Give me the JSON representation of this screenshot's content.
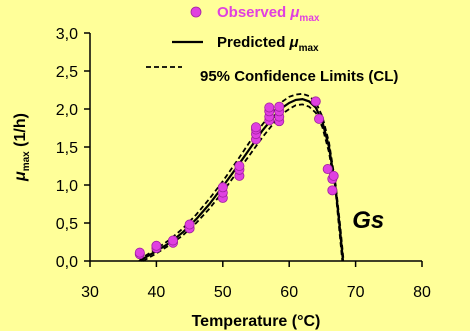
{
  "chart_data": {
    "type": "scatter",
    "xlabel": "Temperature (°C)",
    "ylabel": {
      "main": "μ",
      "sub": "max",
      "tail": " (1/h)"
    },
    "xlim": [
      30,
      80
    ],
    "ylim": [
      0.0,
      3.0
    ],
    "x_ticks": [
      30,
      40,
      50,
      60,
      70,
      80
    ],
    "x_tick_labels": [
      "30",
      "40",
      "50",
      "60",
      "70",
      "80"
    ],
    "y_ticks": [
      0.0,
      0.5,
      1.0,
      1.5,
      2.0,
      2.5,
      3.0
    ],
    "y_tick_labels": [
      "0,0",
      "0,5",
      "1,0",
      "1,5",
      "2,0",
      "2,5",
      "3,0"
    ],
    "grid": false,
    "legend_position": "top-right",
    "legend": [
      {
        "key": "observed",
        "prefix": "Observed ",
        "mu": "μ",
        "sub": "max",
        "suffix": ""
      },
      {
        "key": "predicted",
        "prefix": "Predicted ",
        "mu": "μ",
        "sub": "max",
        "suffix": ""
      },
      {
        "key": "cl",
        "prefix": "95% Confidence Limits (CL)",
        "mu": "",
        "sub": "",
        "suffix": ""
      }
    ],
    "annotation": {
      "text": "Gs",
      "x": 71,
      "y": 0.55
    },
    "colors": {
      "observed": "#e040e0",
      "predicted": "#000000",
      "cl": "#000000",
      "background": "#ffff99"
    },
    "series": [
      {
        "key": "observed",
        "type": "scatter",
        "points": [
          [
            37.5,
            0.09
          ],
          [
            37.5,
            0.11
          ],
          [
            40,
            0.17
          ],
          [
            40,
            0.2
          ],
          [
            42.5,
            0.24
          ],
          [
            42.5,
            0.27
          ],
          [
            45,
            0.43
          ],
          [
            45,
            0.48
          ],
          [
            50,
            0.83
          ],
          [
            50,
            0.9
          ],
          [
            50,
            0.97
          ],
          [
            52.5,
            1.12
          ],
          [
            52.5,
            1.2
          ],
          [
            52.5,
            1.25
          ],
          [
            55,
            1.6
          ],
          [
            55,
            1.67
          ],
          [
            55,
            1.73
          ],
          [
            55,
            1.76
          ],
          [
            57,
            1.85
          ],
          [
            57,
            1.9
          ],
          [
            57,
            1.97
          ],
          [
            57,
            2.02
          ],
          [
            58.5,
            1.84
          ],
          [
            58.5,
            1.9
          ],
          [
            58.5,
            1.97
          ],
          [
            58.5,
            2.03
          ],
          [
            64,
            2.1
          ],
          [
            64.5,
            1.87
          ],
          [
            65.8,
            1.21
          ],
          [
            66.5,
            1.08
          ],
          [
            66.7,
            1.12
          ],
          [
            66.5,
            0.93
          ]
        ]
      },
      {
        "key": "predicted",
        "type": "line",
        "points": [
          [
            37.7,
            0.0
          ],
          [
            38,
            0.03
          ],
          [
            40,
            0.13
          ],
          [
            42,
            0.24
          ],
          [
            44,
            0.38
          ],
          [
            46,
            0.55
          ],
          [
            48,
            0.75
          ],
          [
            50,
            0.98
          ],
          [
            52,
            1.22
          ],
          [
            54,
            1.47
          ],
          [
            56,
            1.72
          ],
          [
            58,
            1.93
          ],
          [
            59,
            2.02
          ],
          [
            60,
            2.08
          ],
          [
            61,
            2.12
          ],
          [
            62,
            2.13
          ],
          [
            63,
            2.1
          ],
          [
            64,
            2.02
          ],
          [
            65,
            1.83
          ],
          [
            66,
            1.5
          ],
          [
            67,
            0.95
          ],
          [
            67.6,
            0.45
          ],
          [
            68.1,
            0.0
          ]
        ]
      },
      {
        "key": "cl_upper",
        "type": "dashed-line",
        "points": [
          [
            37.4,
            0.0
          ],
          [
            38,
            0.05
          ],
          [
            40,
            0.16
          ],
          [
            42,
            0.28
          ],
          [
            44,
            0.43
          ],
          [
            46,
            0.61
          ],
          [
            48,
            0.82
          ],
          [
            50,
            1.05
          ],
          [
            52,
            1.3
          ],
          [
            54,
            1.56
          ],
          [
            56,
            1.8
          ],
          [
            58,
            2.01
          ],
          [
            59,
            2.1
          ],
          [
            60,
            2.16
          ],
          [
            61,
            2.19
          ],
          [
            62,
            2.2
          ],
          [
            63,
            2.17
          ],
          [
            64,
            2.09
          ],
          [
            65,
            1.9
          ],
          [
            66,
            1.56
          ],
          [
            67,
            1.0
          ],
          [
            67.7,
            0.45
          ],
          [
            68.2,
            0.0
          ]
        ]
      },
      {
        "key": "cl_lower",
        "type": "dashed-line",
        "points": [
          [
            38,
            0.0
          ],
          [
            40,
            0.1
          ],
          [
            42,
            0.21
          ],
          [
            44,
            0.34
          ],
          [
            46,
            0.5
          ],
          [
            48,
            0.69
          ],
          [
            50,
            0.91
          ],
          [
            52,
            1.15
          ],
          [
            54,
            1.39
          ],
          [
            56,
            1.63
          ],
          [
            58,
            1.85
          ],
          [
            59,
            1.94
          ],
          [
            60,
            2.0
          ],
          [
            61,
            2.05
          ],
          [
            62,
            2.06
          ],
          [
            63,
            2.03
          ],
          [
            64,
            1.95
          ],
          [
            65,
            1.76
          ],
          [
            66,
            1.43
          ],
          [
            67,
            0.9
          ],
          [
            67.5,
            0.45
          ],
          [
            68.0,
            0.0
          ]
        ]
      }
    ]
  }
}
